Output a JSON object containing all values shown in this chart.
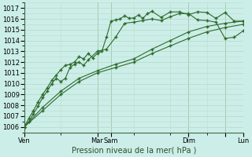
{
  "title": "",
  "xlabel": "Pression niveau de la mer( hPa )",
  "bg_color": "#cceee8",
  "grid_color": "#bbddcc",
  "line_color": "#2d6a2d",
  "marker_color": "#2d6a2d",
  "ylim": [
    1005.5,
    1017.5
  ],
  "yticks": [
    1006,
    1007,
    1008,
    1009,
    1010,
    1011,
    1012,
    1013,
    1014,
    1015,
    1016,
    1017
  ],
  "series": [
    {
      "x": [
        0,
        0.5,
        1,
        1.5,
        2,
        2.5,
        3,
        3.5,
        4,
        4.5,
        5,
        5.5,
        6,
        6.5,
        7,
        7.5,
        8,
        8.5,
        9,
        9.5,
        10,
        10.5,
        11,
        11.5,
        12,
        12.5,
        13,
        13.5,
        14,
        15,
        16,
        17,
        18,
        19,
        20,
        21,
        22,
        23,
        24
      ],
      "y": [
        1006.0,
        1006.8,
        1007.5,
        1008.3,
        1009.0,
        1009.6,
        1010.3,
        1010.8,
        1011.3,
        1011.7,
        1011.8,
        1012.0,
        1012.5,
        1012.3,
        1012.8,
        1012.4,
        1012.8,
        1013.0,
        1014.3,
        1015.8,
        1015.9,
        1016.0,
        1016.3,
        1016.05,
        1016.1,
        1016.35,
        1016.05,
        1016.5,
        1016.7,
        1016.15,
        1016.65,
        1016.65,
        1016.4,
        1016.65,
        1016.6,
        1016.05,
        1016.6,
        1015.8,
        1015.8
      ]
    },
    {
      "x": [
        0,
        0.5,
        1,
        1.5,
        2,
        2.5,
        3,
        3.5,
        4,
        4.5,
        5,
        5.5,
        6,
        6.5,
        7,
        8,
        9,
        10,
        11,
        12,
        13,
        14,
        15,
        16,
        17,
        18,
        19,
        20,
        21,
        22,
        23,
        24
      ],
      "y": [
        1006.0,
        1006.5,
        1007.2,
        1007.9,
        1008.7,
        1009.3,
        1010.0,
        1010.5,
        1010.2,
        1010.5,
        1011.5,
        1011.8,
        1012.0,
        1011.7,
        1012.2,
        1013.0,
        1013.2,
        1014.3,
        1015.6,
        1015.7,
        1015.85,
        1016.0,
        1015.85,
        1016.2,
        1016.5,
        1016.5,
        1015.9,
        1015.85,
        1015.7,
        1014.2,
        1014.3,
        1014.9
      ]
    },
    {
      "x": [
        0,
        2,
        4,
        6,
        8,
        10,
        12,
        14,
        16,
        18,
        20,
        22,
        24
      ],
      "y": [
        1006.0,
        1007.5,
        1009.0,
        1010.2,
        1011.0,
        1011.5,
        1012.0,
        1012.8,
        1013.5,
        1014.2,
        1014.8,
        1015.2,
        1015.5
      ]
    },
    {
      "x": [
        0,
        2,
        4,
        6,
        8,
        10,
        12,
        14,
        16,
        18,
        20,
        22,
        24
      ],
      "y": [
        1006.0,
        1007.8,
        1009.3,
        1010.5,
        1011.2,
        1011.8,
        1012.3,
        1013.2,
        1014.0,
        1014.8,
        1015.3,
        1015.6,
        1015.8
      ]
    }
  ],
  "vline_positions": [
    8.0,
    9.5,
    18.0,
    22.0
  ],
  "xtick_positions": [
    0,
    8.0,
    9.5,
    18.0,
    22.0,
    24
  ],
  "xtick_labels": [
    "Ven",
    "Mar",
    "Sam",
    "Dim",
    "",
    "Lun"
  ],
  "xlim": [
    0,
    24
  ]
}
